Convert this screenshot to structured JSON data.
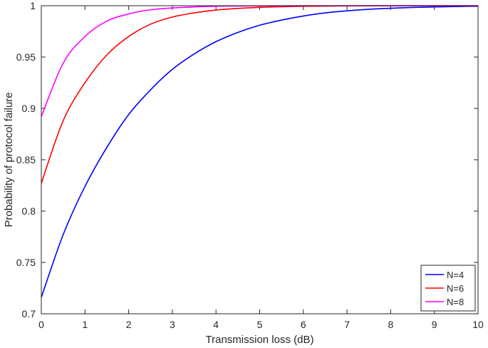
{
  "chart_data": {
    "type": "line",
    "title": "",
    "xlabel": "Transmission loss (dB)",
    "ylabel": "Probability of protocol failure",
    "xlim": [
      0,
      10
    ],
    "ylim": [
      0.7,
      1
    ],
    "xticks": [
      "0",
      "1",
      "2",
      "3",
      "4",
      "5",
      "6",
      "7",
      "8",
      "9",
      "10"
    ],
    "yticks": [
      "0.7",
      "0.75",
      "0.8",
      "0.85",
      "0.9",
      "0.95",
      "1"
    ],
    "grid": false,
    "legend_position": "bottom-right",
    "x": [
      0,
      0.5,
      1,
      1.5,
      2,
      2.5,
      3,
      3.5,
      4,
      4.5,
      5,
      5.5,
      6,
      6.5,
      7,
      7.5,
      8,
      8.5,
      9,
      9.5,
      10
    ],
    "series": [
      {
        "name": "N=4",
        "color": "#0000ff",
        "values": [
          0.716,
          0.777,
          0.824,
          0.862,
          0.894,
          0.918,
          0.938,
          0.953,
          0.965,
          0.974,
          0.981,
          0.986,
          0.99,
          0.993,
          0.995,
          0.9965,
          0.9975,
          0.9983,
          0.9988,
          0.9992,
          0.9995
        ]
      },
      {
        "name": "N=6",
        "color": "#ff0000",
        "values": [
          0.827,
          0.888,
          0.925,
          0.952,
          0.97,
          0.982,
          0.989,
          0.993,
          0.9958,
          0.9974,
          0.9984,
          0.999,
          0.9994,
          0.9996,
          0.9998,
          0.9999,
          0.9999,
          1.0,
          1.0,
          1.0,
          1.0
        ]
      },
      {
        "name": "N=8",
        "color": "#ff00ff",
        "values": [
          0.892,
          0.944,
          0.97,
          0.985,
          0.992,
          0.996,
          0.9978,
          0.9988,
          0.9994,
          0.9997,
          0.9998,
          0.9999,
          1.0,
          1.0,
          1.0,
          1.0,
          1.0,
          1.0,
          1.0,
          1.0,
          1.0
        ]
      }
    ]
  }
}
